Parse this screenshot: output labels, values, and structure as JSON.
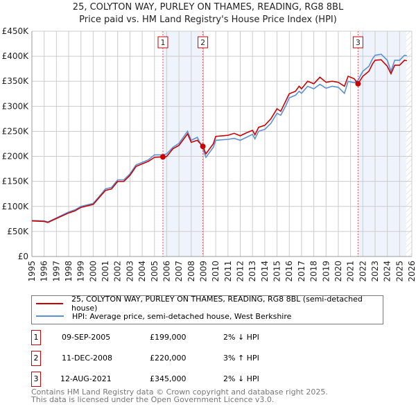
{
  "title": "25, COLYTON WAY, PURLEY ON THAMES, READING, RG8 8BL",
  "subtitle": "Price paid vs. HM Land Registry's House Price Index (HPI)",
  "chart_data": {
    "type": "line",
    "ylim": [
      0,
      450000
    ],
    "xlim": [
      1995,
      2026
    ],
    "y_ticks": [
      0,
      50000,
      100000,
      150000,
      200000,
      250000,
      300000,
      350000,
      400000,
      450000
    ],
    "y_tick_labels": [
      "£0",
      "£50K",
      "£100K",
      "£150K",
      "£200K",
      "£250K",
      "£300K",
      "£350K",
      "£400K",
      "£450K"
    ],
    "x_ticks": [
      1995,
      1996,
      1997,
      1998,
      1999,
      2000,
      2001,
      2002,
      2003,
      2004,
      2005,
      2006,
      2007,
      2008,
      2009,
      2010,
      2011,
      2012,
      2013,
      2014,
      2015,
      2016,
      2017,
      2018,
      2019,
      2020,
      2021,
      2022,
      2023,
      2024,
      2025,
      2026
    ],
    "x_tick_labels": [
      "1995",
      "1996",
      "1997",
      "1998",
      "1999",
      "2000",
      "2001",
      "2002",
      "2003",
      "2004",
      "2005",
      "2006",
      "2007",
      "2008",
      "2009",
      "2010",
      "2011",
      "2012",
      "2013",
      "2014",
      "2015",
      "2016",
      "2017",
      "2018",
      "2019",
      "2020",
      "2021",
      "2022",
      "2023",
      "2024",
      "2025",
      "2026"
    ],
    "grid": true,
    "colors": {
      "property": "#cc0000",
      "hpi": "#5b8fd6",
      "band": "#eef3fc"
    },
    "series": [
      {
        "name": "25, COLYTON WAY, PURLEY ON THAMES, READING, RG8 8BL (semi-detached house)",
        "x": [
          1995,
          1996,
          1996.3,
          1997,
          1998,
          1998.5,
          1999,
          2000,
          2000.5,
          2001,
          2001.5,
          2002,
          2002.5,
          2003,
          2003.5,
          2004,
          2004.5,
          2005,
          2005.69,
          2006,
          2006.5,
          2007,
          2007.7,
          2008,
          2008.5,
          2008.95,
          2009.2,
          2009.8,
          2010,
          2011,
          2011.5,
          2012,
          2012.5,
          2013,
          2013.2,
          2013.5,
          2014,
          2014.5,
          2015,
          2015.3,
          2015.7,
          2016,
          2016.5,
          2016.8,
          2017,
          2017.5,
          2018,
          2018.5,
          2019,
          2019.5,
          2020,
          2020.5,
          2020.8,
          2021.3,
          2021.61,
          2022,
          2022.5,
          2022.8,
          2023,
          2023.5,
          2024,
          2024.3,
          2024.6,
          2025,
          2025.4,
          2025.6
        ],
        "y": [
          71000,
          70000,
          68000,
          76000,
          87000,
          91000,
          98000,
          104000,
          118000,
          132000,
          135000,
          150000,
          150000,
          162000,
          180000,
          185000,
          190000,
          198000,
          199000,
          200000,
          215000,
          222000,
          245000,
          228000,
          232000,
          220000,
          205000,
          225000,
          240000,
          242000,
          246000,
          241000,
          247000,
          252000,
          243000,
          258000,
          262000,
          275000,
          295000,
          290000,
          310000,
          325000,
          330000,
          340000,
          335000,
          350000,
          345000,
          358000,
          348000,
          350000,
          348000,
          340000,
          360000,
          355000,
          345000,
          360000,
          370000,
          385000,
          392000,
          393000,
          380000,
          365000,
          382000,
          382000,
          392000,
          391000
        ]
      },
      {
        "name": "HPI: Average price, semi-detached house, West Berkshire",
        "x": [
          1995,
          1996,
          1996.3,
          1997,
          1998,
          1998.5,
          1999,
          2000,
          2000.5,
          2001,
          2001.5,
          2002,
          2002.5,
          2003,
          2003.5,
          2004,
          2004.5,
          2005,
          2005.69,
          2006,
          2006.5,
          2007,
          2007.7,
          2008,
          2008.5,
          2008.95,
          2009.2,
          2009.8,
          2010,
          2011,
          2011.5,
          2012,
          2012.5,
          2013,
          2013.2,
          2013.5,
          2014,
          2014.5,
          2015,
          2015.3,
          2015.7,
          2016,
          2016.5,
          2016.8,
          2017,
          2017.5,
          2018,
          2018.5,
          2019,
          2019.5,
          2020,
          2020.5,
          2020.8,
          2021.3,
          2021.61,
          2022,
          2022.5,
          2022.8,
          2023,
          2023.5,
          2024,
          2024.3,
          2024.6,
          2025,
          2025.4,
          2025.6
        ],
        "y": [
          72000,
          71000,
          69000,
          77000,
          89000,
          93000,
          100000,
          106000,
          120000,
          135000,
          138000,
          153000,
          153000,
          165000,
          183000,
          188000,
          193000,
          203000,
          203000,
          205000,
          218000,
          226000,
          250000,
          232000,
          238000,
          215000,
          198000,
          218000,
          232000,
          234000,
          236000,
          232000,
          238000,
          244000,
          235000,
          250000,
          254000,
          266000,
          286000,
          282000,
          300000,
          317000,
          322000,
          330000,
          326000,
          340000,
          335000,
          344000,
          336000,
          340000,
          338000,
          326000,
          350000,
          347000,
          352000,
          370000,
          380000,
          395000,
          402000,
          404000,
          392000,
          370000,
          392000,
          392000,
          402000,
          401000
        ]
      }
    ],
    "sales": [
      {
        "label": "1",
        "x": 2005.69,
        "price": 199000
      },
      {
        "label": "2",
        "x": 2008.95,
        "price": 220000
      },
      {
        "label": "3",
        "x": 2021.61,
        "price": 345000
      }
    ],
    "data_end": 2025.55
  },
  "legend": {
    "property": "25, COLYTON WAY, PURLEY ON THAMES, READING, RG8 8BL (semi-detached house)",
    "hpi": "HPI: Average price, semi-detached house, West Berkshire"
  },
  "transactions": [
    {
      "num": "1",
      "date": "09-SEP-2005",
      "price": "£199,000",
      "hpi": "2% ↓ HPI"
    },
    {
      "num": "2",
      "date": "11-DEC-2008",
      "price": "£220,000",
      "hpi": "3% ↑ HPI"
    },
    {
      "num": "3",
      "date": "12-AUG-2021",
      "price": "£345,000",
      "hpi": "2% ↓ HPI"
    }
  ],
  "footer": {
    "line1": "Contains HM Land Registry data © Crown copyright and database right 2025.",
    "line2": "This data is licensed under the Open Government Licence v3.0."
  }
}
